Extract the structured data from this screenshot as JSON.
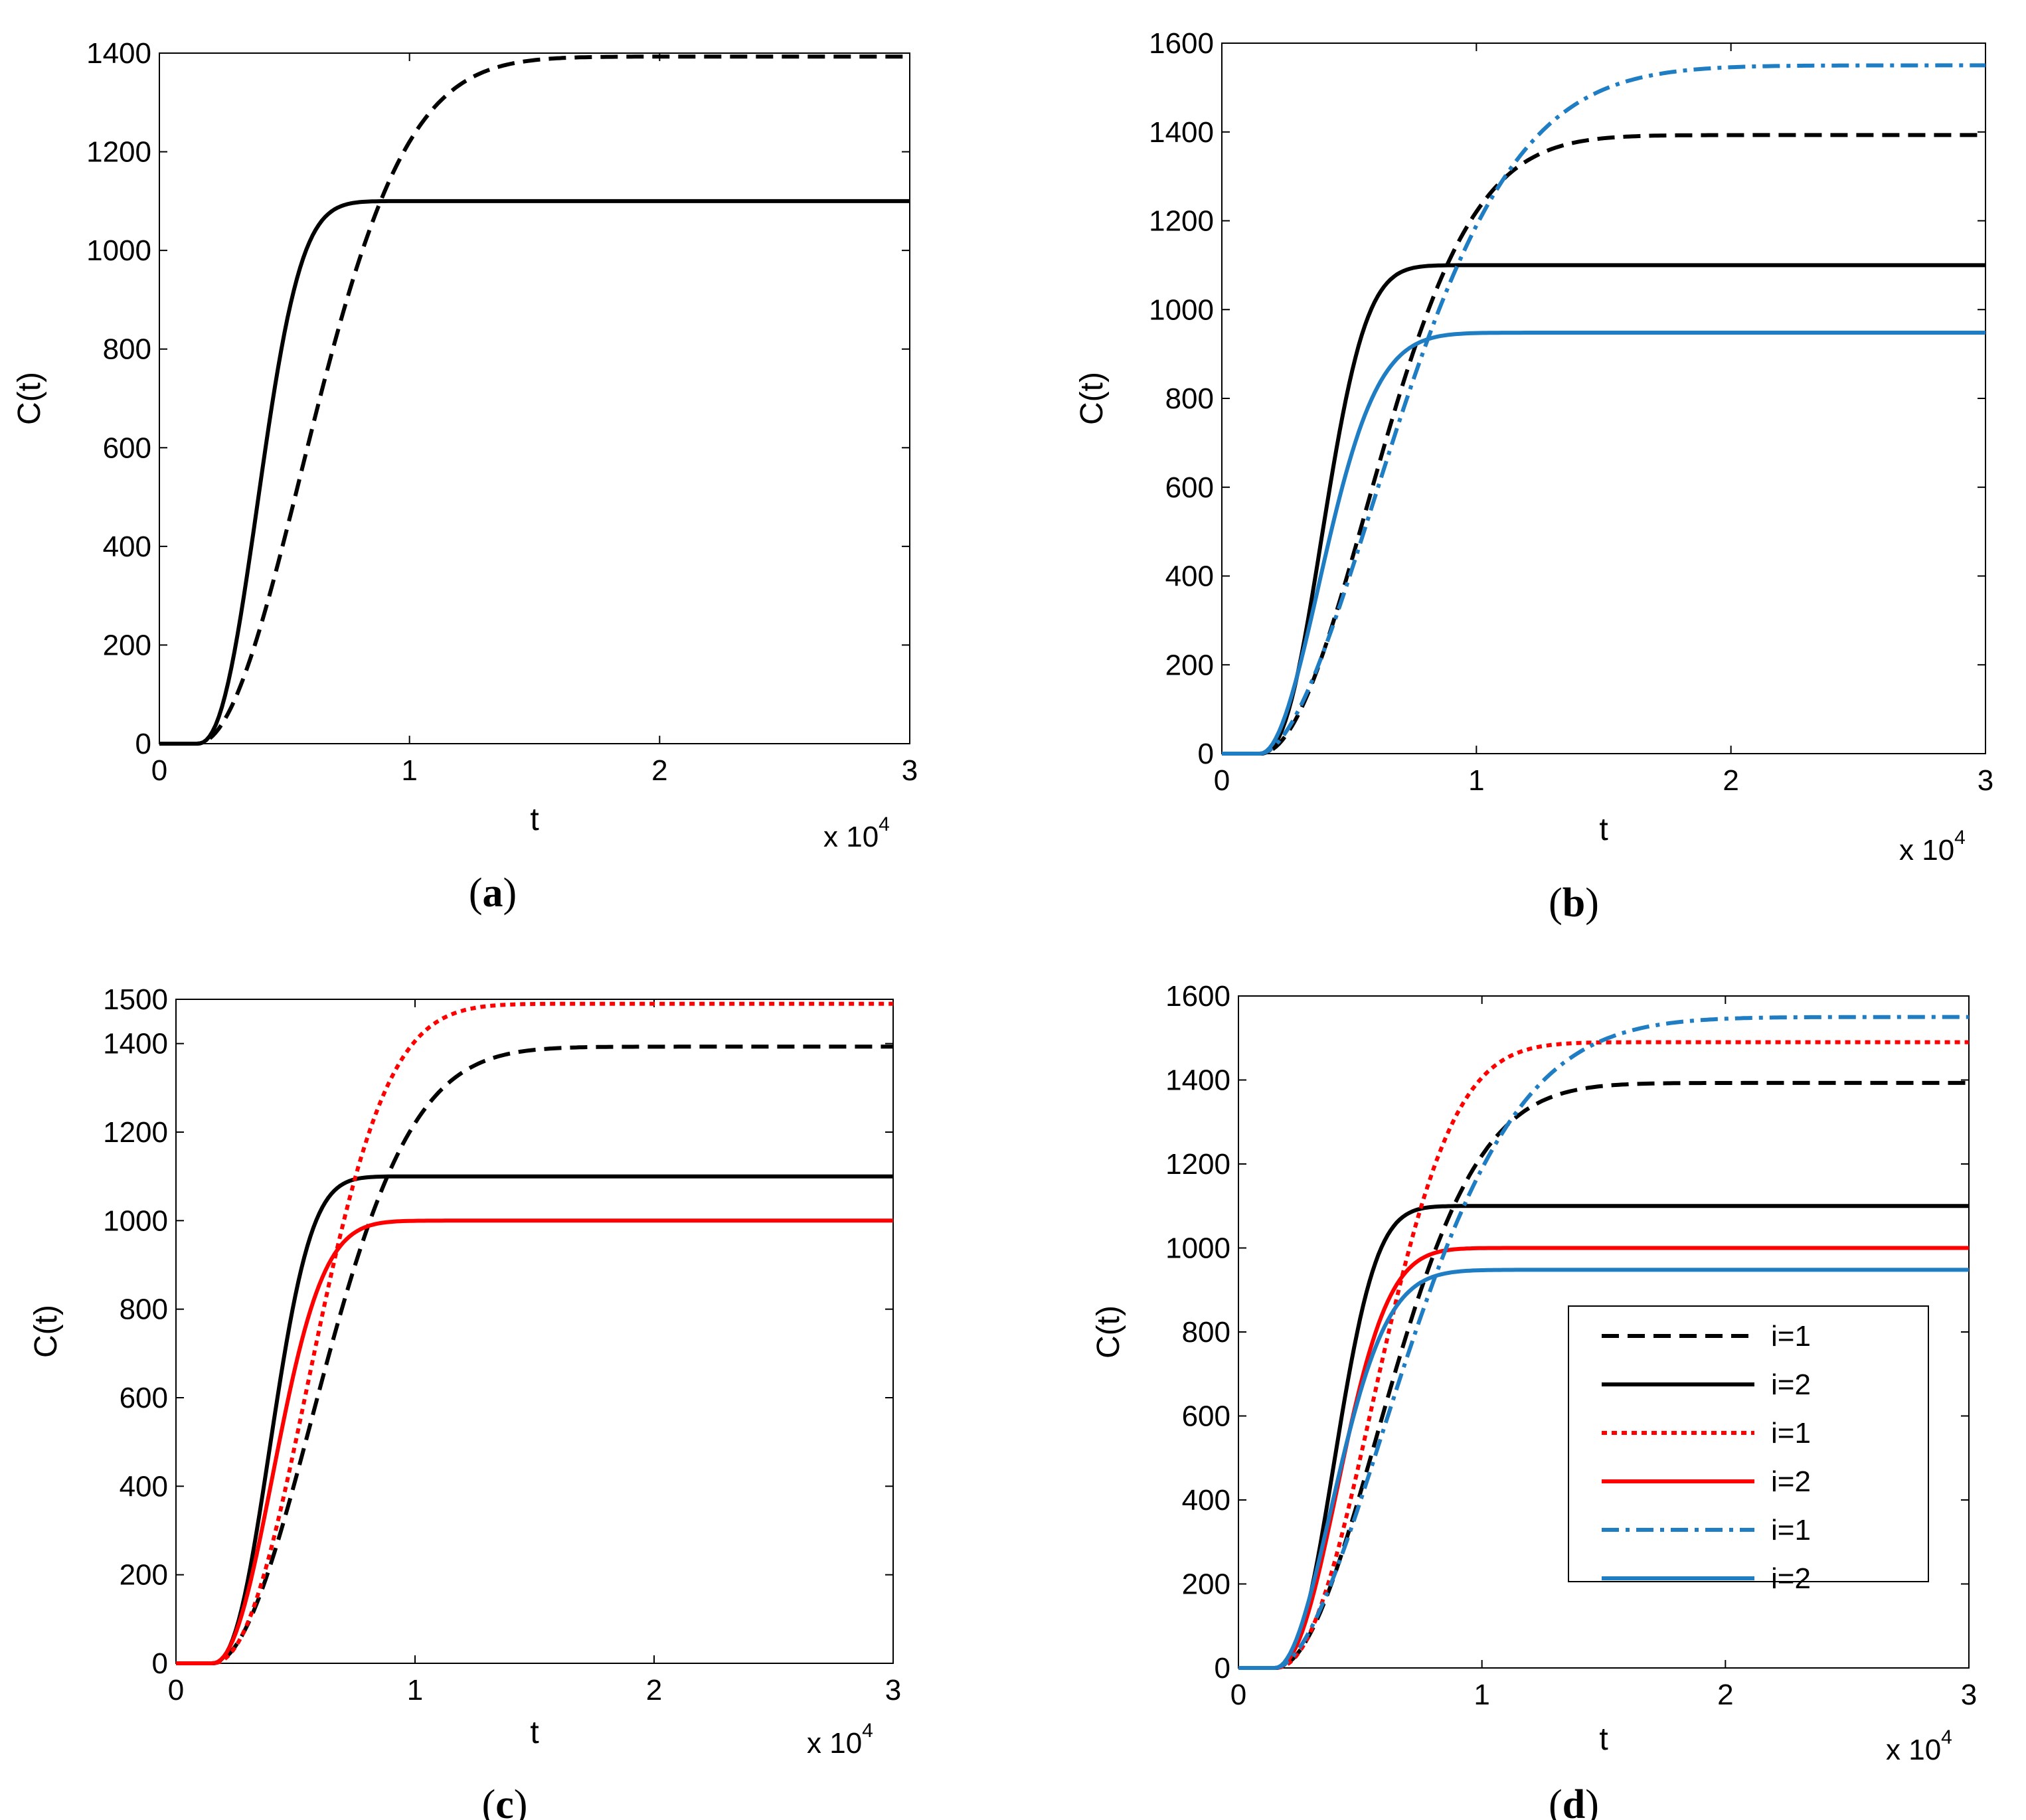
{
  "colors": {
    "black": "#000000",
    "red": "#ff0000",
    "blue": "#1f7dc4"
  },
  "series_styles": {
    "i1_black": {
      "color": "#000000",
      "dash": "dashed"
    },
    "i2_black": {
      "color": "#000000",
      "dash": "solid"
    },
    "i1_red": {
      "color": "#ff0000",
      "dash": "dotted"
    },
    "i2_red": {
      "color": "#ff0000",
      "dash": "solid"
    },
    "i1_blue": {
      "color": "#1f7dc4",
      "dash": "dashdot"
    },
    "i2_blue": {
      "color": "#1f7dc4",
      "dash": "solid"
    }
  },
  "chart_data": [
    {
      "type": "line",
      "panel": "(a)",
      "caption_letter": "a",
      "xlabel": "t",
      "ylabel": "C(t)",
      "x_exponent_base": "x 10",
      "x_exponent_power": "4",
      "xlim": [
        0,
        3
      ],
      "ylim": [
        0,
        1400
      ],
      "xticks": [
        0,
        1,
        2,
        3
      ],
      "yticks": [
        0,
        200,
        400,
        600,
        800,
        1000,
        1200,
        1400
      ],
      "series": [
        {
          "name": "i=1",
          "style": "i1_black",
          "plateau": 1393,
          "t0": 0.15,
          "k": 1.7,
          "m": 2.0
        },
        {
          "name": "i=2",
          "style": "i2_black",
          "plateau": 1100,
          "t0": 0.15,
          "k": 3.3,
          "m": 2.4
        }
      ]
    },
    {
      "type": "line",
      "panel": "(b)",
      "caption_letter": "b",
      "xlabel": "t",
      "ylabel": "C(t)",
      "x_exponent_base": "x 10",
      "x_exponent_power": "4",
      "xlim": [
        0,
        3
      ],
      "ylim": [
        0,
        1600
      ],
      "xticks": [
        0,
        1,
        2,
        3
      ],
      "yticks": [
        0,
        200,
        400,
        600,
        800,
        1000,
        1200,
        1400,
        1600
      ],
      "series": [
        {
          "name": "i=1",
          "style": "i1_black",
          "plateau": 1393,
          "t0": 0.15,
          "k": 1.7,
          "m": 2.0
        },
        {
          "name": "i=2",
          "style": "i2_black",
          "plateau": 1100,
          "t0": 0.15,
          "k": 3.3,
          "m": 2.4
        },
        {
          "name": "i=1",
          "style": "i1_blue",
          "plateau": 1550,
          "t0": 0.15,
          "k": 1.45,
          "m": 1.8
        },
        {
          "name": "i=2",
          "style": "i2_blue",
          "plateau": 948,
          "t0": 0.15,
          "k": 3.1,
          "m": 2.0
        }
      ]
    },
    {
      "type": "line",
      "panel": "(c)",
      "caption_letter": "c",
      "xlabel": "t",
      "ylabel": "C(t)",
      "x_exponent_base": "x 10",
      "x_exponent_power": "4",
      "xlim": [
        0,
        3
      ],
      "ylim": [
        0,
        1500
      ],
      "xticks": [
        0,
        1,
        2,
        3
      ],
      "yticks": [
        0,
        200,
        400,
        600,
        800,
        1000,
        1200,
        1400,
        1500
      ],
      "series": [
        {
          "name": "i=1",
          "style": "i1_black",
          "plateau": 1393,
          "t0": 0.15,
          "k": 1.7,
          "m": 2.0
        },
        {
          "name": "i=2",
          "style": "i2_black",
          "plateau": 1100,
          "t0": 0.15,
          "k": 3.3,
          "m": 2.4
        },
        {
          "name": "i=1",
          "style": "i1_red",
          "plateau": 1490,
          "t0": 0.15,
          "k": 1.9,
          "m": 2.2
        },
        {
          "name": "i=2",
          "style": "i2_red",
          "plateau": 1000,
          "t0": 0.15,
          "k": 3.0,
          "m": 2.2
        }
      ]
    },
    {
      "type": "line",
      "panel": "(d)",
      "caption_letter": "d",
      "xlabel": "t",
      "ylabel": "C(t)",
      "x_exponent_base": "x 10",
      "x_exponent_power": "4",
      "xlim": [
        0,
        3
      ],
      "ylim": [
        0,
        1600
      ],
      "xticks": [
        0,
        1,
        2,
        3
      ],
      "yticks": [
        0,
        200,
        400,
        600,
        800,
        1000,
        1200,
        1400,
        1600
      ],
      "legend_position": "center-right",
      "legend": [
        {
          "label": "i=1",
          "style": "i1_black"
        },
        {
          "label": "i=2",
          "style": "i2_black"
        },
        {
          "label": "i=1",
          "style": "i1_red"
        },
        {
          "label": "i=2",
          "style": "i2_red"
        },
        {
          "label": "i=1",
          "style": "i1_blue"
        },
        {
          "label": "i=2",
          "style": "i2_blue"
        }
      ],
      "series": [
        {
          "name": "i=1",
          "style": "i1_black",
          "plateau": 1393,
          "t0": 0.15,
          "k": 1.7,
          "m": 2.0
        },
        {
          "name": "i=2",
          "style": "i2_black",
          "plateau": 1100,
          "t0": 0.15,
          "k": 3.3,
          "m": 2.4
        },
        {
          "name": "i=1",
          "style": "i1_red",
          "plateau": 1490,
          "t0": 0.15,
          "k": 1.9,
          "m": 2.2
        },
        {
          "name": "i=2",
          "style": "i2_red",
          "plateau": 1000,
          "t0": 0.15,
          "k": 3.0,
          "m": 2.2
        },
        {
          "name": "i=1",
          "style": "i1_blue",
          "plateau": 1550,
          "t0": 0.15,
          "k": 1.45,
          "m": 1.8
        },
        {
          "name": "i=2",
          "style": "i2_blue",
          "plateau": 948,
          "t0": 0.15,
          "k": 3.1,
          "m": 2.0
        }
      ]
    }
  ]
}
